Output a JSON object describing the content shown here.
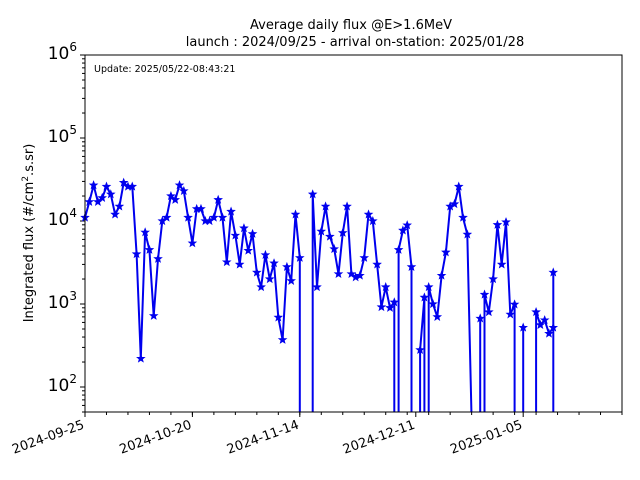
{
  "chart_data": {
    "type": "line",
    "title": "Average daily flux @E>1.6MeV",
    "subtitle": "launch : 2024/09/25 - arrival on-station: 2025/01/28",
    "annotation": "Update: 2025/05/22-08:43:21",
    "ylabel": "Integrated flux (#/cm",
    "ylabel_sup": "2",
    "ylabel_tail": ".s.sr)",
    "yscale": "log",
    "ylim": [
      50,
      1000000
    ],
    "xlim": [
      "2024-09-25",
      "2025-01-28"
    ],
    "x_ticks": [
      "2024-09-25",
      "2024-10-20",
      "2024-11-14",
      "2024-12-11",
      "2025-01-05"
    ],
    "y_ticks": [
      {
        "base": "10",
        "exp": "2",
        "value": 100
      },
      {
        "base": "10",
        "exp": "3",
        "value": 1000
      },
      {
        "base": "10",
        "exp": "4",
        "value": 10000
      },
      {
        "base": "10",
        "exp": "5",
        "value": 100000
      },
      {
        "base": "10",
        "exp": "6",
        "value": 1000000
      }
    ],
    "line_color": "#0000ee",
    "marker": "star",
    "series": [
      {
        "points": [
          [
            "2024-09-25",
            11000
          ],
          [
            "2024-09-26",
            17000
          ],
          [
            "2024-09-27",
            27000
          ],
          [
            "2024-09-28",
            17000
          ],
          [
            "2024-09-29",
            19000
          ],
          [
            "2024-09-30",
            26000
          ],
          [
            "2024-10-01",
            21000
          ],
          [
            "2024-10-02",
            12000
          ],
          [
            "2024-10-03",
            15000
          ],
          [
            "2024-10-04",
            29000
          ],
          [
            "2024-10-05",
            26000
          ],
          [
            "2024-10-06",
            26000
          ],
          [
            "2024-10-07",
            4000
          ],
          [
            "2024-10-08",
            220
          ],
          [
            "2024-10-09",
            7300
          ],
          [
            "2024-10-10",
            4500
          ],
          [
            "2024-10-11",
            720
          ],
          [
            "2024-10-12",
            3500
          ],
          [
            "2024-10-13",
            10000
          ],
          [
            "2024-10-14",
            11000
          ],
          [
            "2024-10-15",
            20000
          ],
          [
            "2024-10-16",
            18000
          ],
          [
            "2024-10-17",
            27000
          ],
          [
            "2024-10-18",
            23000
          ],
          [
            "2024-10-19",
            11000
          ],
          [
            "2024-10-20",
            5400
          ],
          [
            "2024-10-21",
            14000
          ],
          [
            "2024-10-22",
            14000
          ],
          [
            "2024-10-23",
            10000
          ],
          [
            "2024-10-24",
            10000
          ],
          [
            "2024-10-25",
            11000
          ],
          [
            "2024-10-26",
            18000
          ],
          [
            "2024-10-27",
            11000
          ],
          [
            "2024-10-28",
            3200
          ],
          [
            "2024-10-29",
            13000
          ],
          [
            "2024-10-30",
            6700
          ],
          [
            "2024-10-31",
            3000
          ],
          [
            "2024-11-01",
            8200
          ],
          [
            "2024-11-02",
            4400
          ],
          [
            "2024-11-03",
            7000
          ],
          [
            "2024-11-04",
            2400
          ],
          [
            "2024-11-05",
            1600
          ],
          [
            "2024-11-06",
            3900
          ],
          [
            "2024-11-07",
            2000
          ],
          [
            "2024-11-08",
            3100
          ],
          [
            "2024-11-09",
            690
          ],
          [
            "2024-11-10",
            370
          ],
          [
            "2024-11-11",
            2800
          ],
          [
            "2024-11-12",
            1900
          ],
          [
            "2024-11-13",
            12000
          ],
          [
            "2024-11-14",
            3600
          ],
          [
            "2024-11-14",
            40
          ],
          null,
          [
            "2024-11-17",
            40
          ],
          [
            "2024-11-17",
            21000
          ],
          [
            "2024-11-18",
            1600
          ],
          [
            "2024-11-19",
            7500
          ],
          [
            "2024-11-20",
            15000
          ],
          [
            "2024-11-21",
            6500
          ],
          [
            "2024-11-22",
            4600
          ],
          [
            "2024-11-23",
            2300
          ],
          [
            "2024-11-24",
            7200
          ],
          [
            "2024-11-25",
            15000
          ],
          [
            "2024-11-26",
            2300
          ],
          [
            "2024-11-27",
            2100
          ],
          [
            "2024-11-28",
            2200
          ],
          [
            "2024-11-29",
            3600
          ],
          [
            "2024-11-30",
            12000
          ],
          [
            "2024-12-01",
            10000
          ],
          [
            "2024-12-02",
            3000
          ],
          [
            "2024-12-03",
            920
          ],
          [
            "2024-12-04",
            1600
          ],
          [
            "2024-12-05",
            900
          ],
          [
            "2024-12-06",
            1050
          ],
          [
            "2024-12-06",
            40
          ],
          null,
          [
            "2024-12-07",
            40
          ],
          [
            "2024-12-07",
            4500
          ],
          [
            "2024-12-08",
            7700
          ],
          [
            "2024-12-09",
            8900
          ],
          [
            "2024-12-10",
            2800
          ],
          [
            "2024-12-10",
            40
          ],
          null,
          [
            "2024-12-12",
            40
          ],
          [
            "2024-12-12",
            280
          ],
          [
            "2024-12-13",
            1200
          ],
          [
            "2024-12-13",
            40
          ],
          null,
          [
            "2024-12-14",
            40
          ],
          [
            "2024-12-14",
            1600
          ],
          [
            "2024-12-15",
            1000
          ],
          [
            "2024-12-16",
            700
          ],
          [
            "2024-12-17",
            2200
          ],
          [
            "2024-12-18",
            4200
          ],
          [
            "2024-12-19",
            15000
          ],
          [
            "2024-12-20",
            16000
          ],
          [
            "2024-12-21",
            26000
          ],
          [
            "2024-12-22",
            11000
          ],
          [
            "2024-12-23",
            6900
          ],
          [
            "2024-12-24",
            40
          ],
          null,
          [
            "2024-12-26",
            40
          ],
          [
            "2024-12-26",
            670
          ],
          [
            "2024-12-26",
            40
          ],
          null,
          [
            "2024-12-27",
            40
          ],
          [
            "2024-12-27",
            1300
          ],
          [
            "2024-12-28",
            800
          ],
          [
            "2024-12-29",
            2000
          ],
          [
            "2024-12-30",
            9000
          ],
          [
            "2024-12-31",
            3000
          ],
          [
            "2025-01-01",
            9700
          ],
          [
            "2025-01-02",
            750
          ],
          [
            "2025-01-03",
            990
          ],
          [
            "2025-01-03",
            40
          ],
          null,
          [
            "2025-01-05",
            40
          ],
          [
            "2025-01-05",
            520
          ],
          [
            "2025-01-05",
            40
          ],
          null,
          [
            "2025-01-08",
            40
          ],
          [
            "2025-01-08",
            800
          ],
          [
            "2025-01-09",
            560
          ],
          [
            "2025-01-10",
            640
          ],
          [
            "2025-01-11",
            440
          ],
          [
            "2025-01-12",
            520
          ],
          [
            "2025-01-12",
            2400
          ],
          [
            "2025-01-12",
            40
          ]
        ]
      }
    ]
  }
}
